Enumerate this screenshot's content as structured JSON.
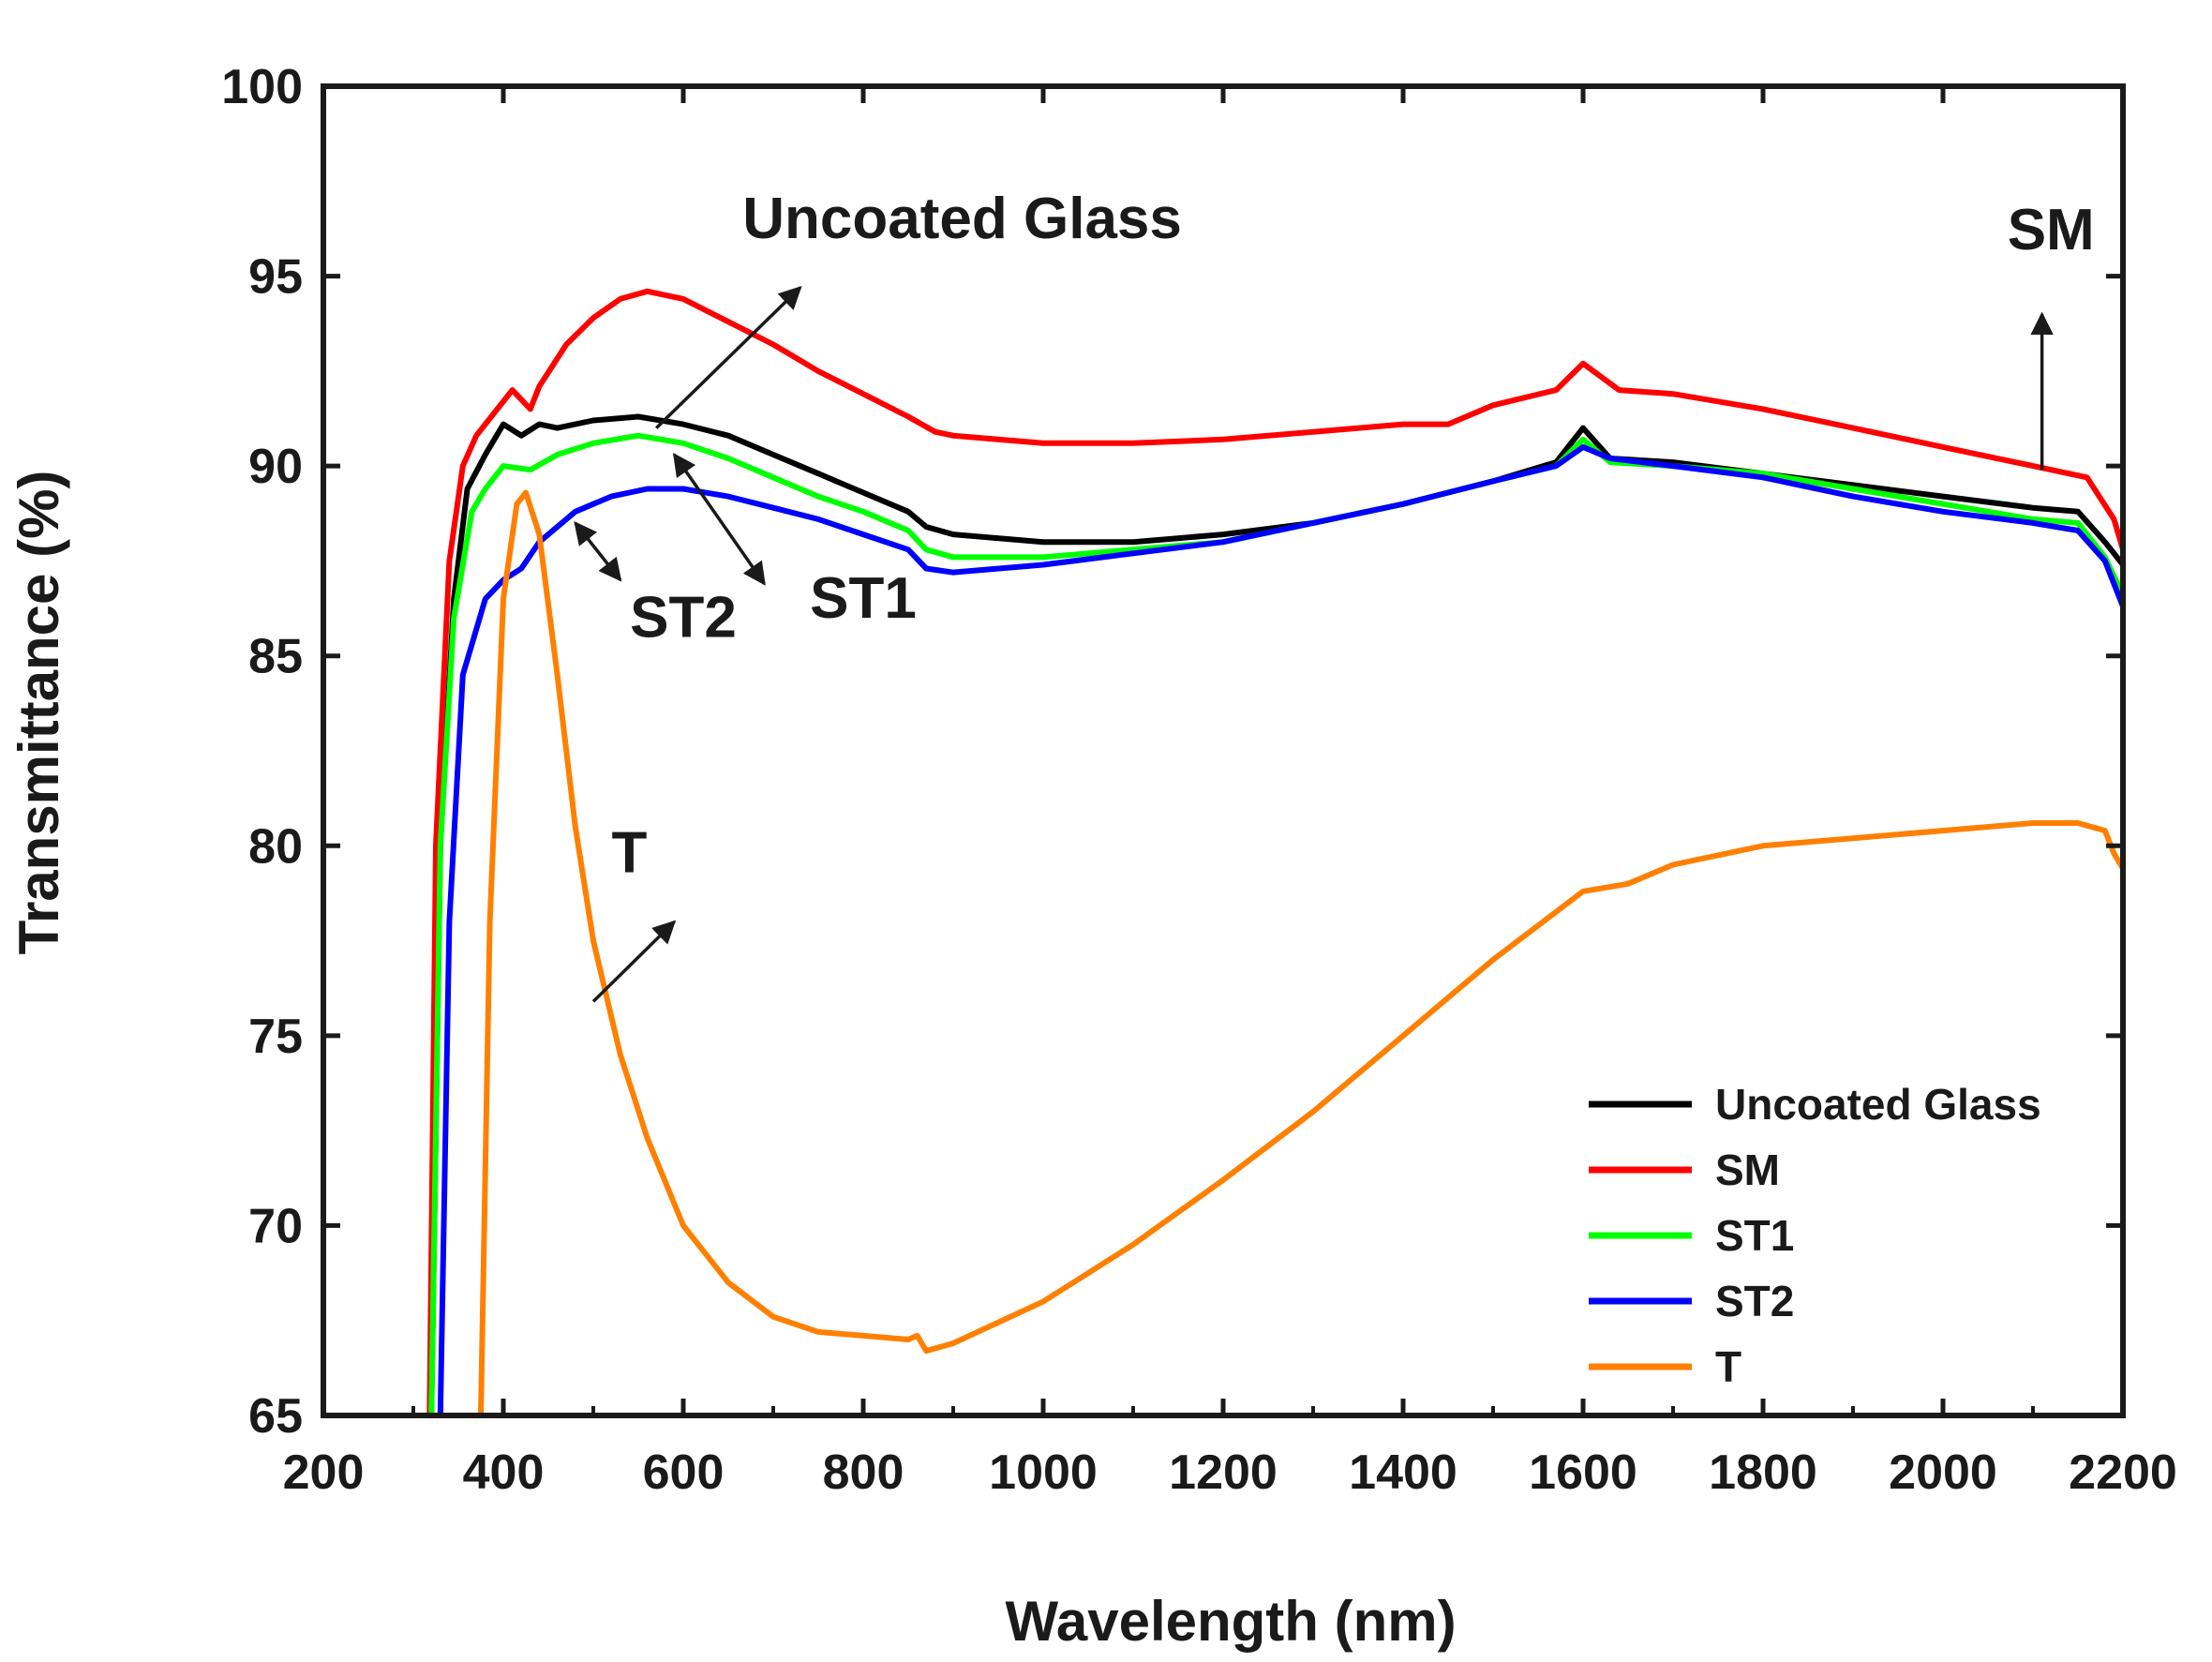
{
  "chart_data": {
    "type": "line",
    "title": "",
    "xlabel": "Wavelength (nm)",
    "ylabel": "Transmittance (%)",
    "xlim": [
      200,
      2200
    ],
    "ylim": [
      65,
      100
    ],
    "xticks": [
      200,
      400,
      600,
      800,
      1000,
      1200,
      1400,
      1600,
      1800,
      2000,
      2200
    ],
    "yticks": [
      65,
      70,
      75,
      80,
      85,
      90,
      95,
      100
    ],
    "grid": false,
    "legend_position": "bottom-right",
    "series": [
      {
        "name": "Uncoated Glass",
        "color": "#000000",
        "points": [
          [
            320,
            65
          ],
          [
            330,
            80
          ],
          [
            345,
            86.5
          ],
          [
            360,
            89.4
          ],
          [
            380,
            90.3
          ],
          [
            400,
            91.1
          ],
          [
            420,
            90.8
          ],
          [
            440,
            91.1
          ],
          [
            460,
            91.0
          ],
          [
            500,
            91.2
          ],
          [
            550,
            91.3
          ],
          [
            600,
            91.1
          ],
          [
            650,
            90.8
          ],
          [
            700,
            90.3
          ],
          [
            750,
            89.8
          ],
          [
            800,
            89.3
          ],
          [
            850,
            88.8
          ],
          [
            870,
            88.4
          ],
          [
            900,
            88.2
          ],
          [
            1000,
            88.0
          ],
          [
            1100,
            88.0
          ],
          [
            1200,
            88.2
          ],
          [
            1300,
            88.5
          ],
          [
            1400,
            89.0
          ],
          [
            1500,
            89.6
          ],
          [
            1570,
            90.1
          ],
          [
            1600,
            91.0
          ],
          [
            1630,
            90.2
          ],
          [
            1700,
            90.1
          ],
          [
            1800,
            89.8
          ],
          [
            1900,
            89.5
          ],
          [
            2000,
            89.2
          ],
          [
            2100,
            88.9
          ],
          [
            2150,
            88.8
          ],
          [
            2180,
            88.0
          ],
          [
            2200,
            87.4
          ]
        ]
      },
      {
        "name": "SM",
        "color": "#ff0000",
        "points": [
          [
            318,
            65
          ],
          [
            325,
            80
          ],
          [
            340,
            87.5
          ],
          [
            355,
            90.0
          ],
          [
            370,
            90.8
          ],
          [
            390,
            91.4
          ],
          [
            410,
            92.0
          ],
          [
            430,
            91.5
          ],
          [
            440,
            92.1
          ],
          [
            470,
            93.2
          ],
          [
            500,
            93.9
          ],
          [
            530,
            94.4
          ],
          [
            560,
            94.6
          ],
          [
            600,
            94.4
          ],
          [
            650,
            93.8
          ],
          [
            700,
            93.2
          ],
          [
            750,
            92.5
          ],
          [
            800,
            91.9
          ],
          [
            850,
            91.3
          ],
          [
            880,
            90.9
          ],
          [
            900,
            90.8
          ],
          [
            1000,
            90.6
          ],
          [
            1100,
            90.6
          ],
          [
            1200,
            90.7
          ],
          [
            1300,
            90.9
          ],
          [
            1400,
            91.1
          ],
          [
            1450,
            91.1
          ],
          [
            1500,
            91.6
          ],
          [
            1570,
            92.0
          ],
          [
            1600,
            92.7
          ],
          [
            1640,
            92.0
          ],
          [
            1700,
            91.9
          ],
          [
            1800,
            91.5
          ],
          [
            1900,
            91.0
          ],
          [
            2000,
            90.5
          ],
          [
            2100,
            90.0
          ],
          [
            2160,
            89.7
          ],
          [
            2190,
            88.6
          ],
          [
            2200,
            87.8
          ]
        ]
      },
      {
        "name": "ST1",
        "color": "#00ff00",
        "points": [
          [
            320,
            65
          ],
          [
            330,
            80
          ],
          [
            345,
            86.0
          ],
          [
            365,
            88.8
          ],
          [
            380,
            89.4
          ],
          [
            400,
            90.0
          ],
          [
            430,
            89.9
          ],
          [
            460,
            90.3
          ],
          [
            500,
            90.6
          ],
          [
            550,
            90.8
          ],
          [
            600,
            90.6
          ],
          [
            650,
            90.2
          ],
          [
            700,
            89.7
          ],
          [
            750,
            89.2
          ],
          [
            800,
            88.8
          ],
          [
            850,
            88.3
          ],
          [
            870,
            87.8
          ],
          [
            900,
            87.6
          ],
          [
            1000,
            87.6
          ],
          [
            1100,
            87.8
          ],
          [
            1200,
            88.0
          ],
          [
            1300,
            88.5
          ],
          [
            1400,
            89.0
          ],
          [
            1500,
            89.6
          ],
          [
            1570,
            90.0
          ],
          [
            1600,
            90.7
          ],
          [
            1630,
            90.1
          ],
          [
            1700,
            90.0
          ],
          [
            1800,
            89.8
          ],
          [
            1900,
            89.4
          ],
          [
            2000,
            89.0
          ],
          [
            2100,
            88.6
          ],
          [
            2150,
            88.5
          ],
          [
            2180,
            87.6
          ],
          [
            2200,
            86.6
          ]
        ]
      },
      {
        "name": "ST2",
        "color": "#0000ff",
        "points": [
          [
            330,
            65
          ],
          [
            340,
            78
          ],
          [
            355,
            84.5
          ],
          [
            380,
            86.5
          ],
          [
            400,
            87.0
          ],
          [
            420,
            87.3
          ],
          [
            440,
            88.0
          ],
          [
            480,
            88.8
          ],
          [
            520,
            89.2
          ],
          [
            560,
            89.4
          ],
          [
            600,
            89.4
          ],
          [
            650,
            89.2
          ],
          [
            700,
            88.9
          ],
          [
            750,
            88.6
          ],
          [
            800,
            88.2
          ],
          [
            850,
            87.8
          ],
          [
            870,
            87.3
          ],
          [
            900,
            87.2
          ],
          [
            1000,
            87.4
          ],
          [
            1100,
            87.7
          ],
          [
            1200,
            88.0
          ],
          [
            1300,
            88.5
          ],
          [
            1400,
            89.0
          ],
          [
            1500,
            89.6
          ],
          [
            1570,
            90.0
          ],
          [
            1600,
            90.5
          ],
          [
            1630,
            90.2
          ],
          [
            1700,
            90.0
          ],
          [
            1800,
            89.7
          ],
          [
            1900,
            89.2
          ],
          [
            2000,
            88.8
          ],
          [
            2100,
            88.5
          ],
          [
            2150,
            88.3
          ],
          [
            2180,
            87.5
          ],
          [
            2200,
            86.3
          ]
        ]
      },
      {
        "name": "T",
        "color": "#ff8000",
        "points": [
          [
            375,
            65
          ],
          [
            385,
            78
          ],
          [
            400,
            86.5
          ],
          [
            415,
            89.0
          ],
          [
            425,
            89.3
          ],
          [
            440,
            88.2
          ],
          [
            460,
            84.5
          ],
          [
            480,
            80.5
          ],
          [
            500,
            77.5
          ],
          [
            530,
            74.5
          ],
          [
            560,
            72.3
          ],
          [
            600,
            70.0
          ],
          [
            650,
            68.5
          ],
          [
            700,
            67.6
          ],
          [
            750,
            67.2
          ],
          [
            800,
            67.1
          ],
          [
            850,
            67.0
          ],
          [
            860,
            67.1
          ],
          [
            870,
            66.7
          ],
          [
            900,
            66.9
          ],
          [
            1000,
            68.0
          ],
          [
            1100,
            69.5
          ],
          [
            1200,
            71.2
          ],
          [
            1300,
            73.0
          ],
          [
            1400,
            75.0
          ],
          [
            1500,
            77.0
          ],
          [
            1600,
            78.8
          ],
          [
            1650,
            79.0
          ],
          [
            1700,
            79.5
          ],
          [
            1800,
            80.0
          ],
          [
            1900,
            80.2
          ],
          [
            2000,
            80.4
          ],
          [
            2100,
            80.6
          ],
          [
            2150,
            80.6
          ],
          [
            2180,
            80.4
          ],
          [
            2190,
            79.8
          ],
          [
            2200,
            79.4
          ]
        ]
      }
    ],
    "annotations": [
      {
        "text": "Uncoated Glass",
        "x": 910,
        "y": 96.0
      },
      {
        "text": "SM",
        "x": 2120,
        "y": 95.7
      },
      {
        "text": "ST1",
        "x": 800,
        "y": 86.0
      },
      {
        "text": "ST2",
        "x": 600,
        "y": 85.5
      },
      {
        "text": "T",
        "x": 540,
        "y": 79.3
      }
    ],
    "arrows": [
      {
        "from": [
          570,
          91.0
        ],
        "to": [
          730,
          94.7
        ],
        "double": false
      },
      {
        "from": [
          2110,
          89.9
        ],
        "to": [
          2110,
          94.0
        ],
        "double": false
      },
      {
        "from": [
          480,
          88.5
        ],
        "to": [
          530,
          87.0
        ],
        "double": true
      },
      {
        "from": [
          590,
          90.3
        ],
        "to": [
          690,
          86.9
        ],
        "double": true
      },
      {
        "from": [
          500,
          75.9
        ],
        "to": [
          590,
          78.0
        ],
        "double": false
      }
    ]
  }
}
